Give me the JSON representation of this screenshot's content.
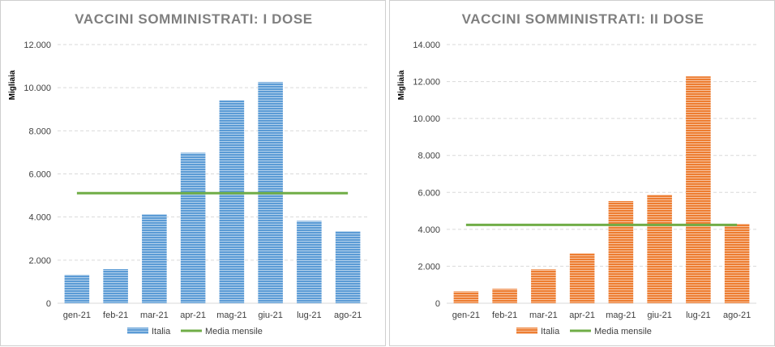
{
  "chart_data": [
    {
      "type": "bar",
      "title": "VACCINI SOMMINISTRATI: I DOSE",
      "ylabel": "Migliaia",
      "xlabel": "",
      "categories": [
        "gen-21",
        "feb-21",
        "mar-21",
        "apr-21",
        "mag-21",
        "giu-21",
        "lug-21",
        "ago-21"
      ],
      "series": [
        {
          "name": "Italia",
          "kind": "bar",
          "values": [
            1320,
            1580,
            4130,
            6980,
            9410,
            10260,
            3820,
            3340
          ],
          "color": "#5b9bd5"
        },
        {
          "name": "Media mensile",
          "kind": "line",
          "values": [
            5105,
            5105,
            5105,
            5105,
            5105,
            5105,
            5105,
            5105
          ],
          "color": "#70ad47"
        }
      ],
      "yticks": [
        "0",
        "2.000",
        "4.000",
        "6.000",
        "8.000",
        "10.000",
        "12.000"
      ],
      "ylim": [
        0,
        12000
      ],
      "grid": true,
      "legend": "bottom"
    },
    {
      "type": "bar",
      "title": "VACCINI SOMMINISTRATI: II DOSE",
      "ylabel": "Migliaia",
      "xlabel": "",
      "categories": [
        "gen-21",
        "feb-21",
        "mar-21",
        "apr-21",
        "mag-21",
        "giu-21",
        "lug-21",
        "ago-21"
      ],
      "series": [
        {
          "name": "Italia",
          "kind": "bar",
          "values": [
            640,
            780,
            1830,
            2700,
            5530,
            5870,
            12280,
            4300
          ],
          "color": "#ed7d31"
        },
        {
          "name": "Media mensile",
          "kind": "line",
          "values": [
            4240,
            4240,
            4240,
            4240,
            4240,
            4240,
            4240,
            4240
          ],
          "color": "#70ad47"
        }
      ],
      "yticks": [
        "0",
        "2.000",
        "4.000",
        "6.000",
        "8.000",
        "10.000",
        "12.000",
        "14.000"
      ],
      "ylim": [
        0,
        14000
      ],
      "grid": true,
      "legend": "bottom"
    }
  ]
}
